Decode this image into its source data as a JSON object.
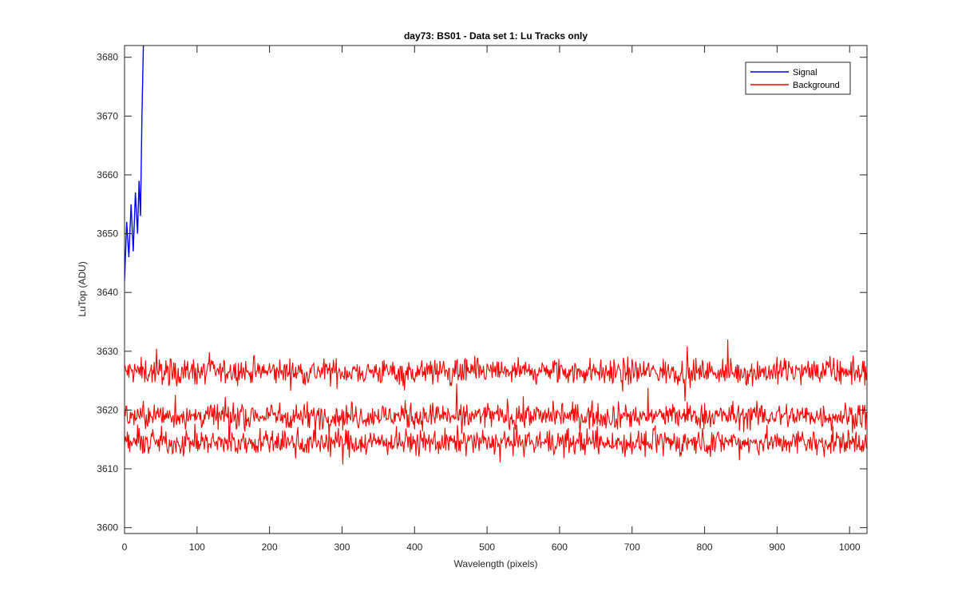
{
  "chart_data": {
    "type": "line",
    "title": "day73: BS01 - Data set 1: Lu Tracks only",
    "xlabel": "Wavelength (pixels)",
    "ylabel": "LuTop (ADU)",
    "xlim": [
      0,
      1024
    ],
    "ylim": [
      3599,
      3682
    ],
    "xticks": [
      0,
      100,
      200,
      300,
      400,
      500,
      600,
      700,
      800,
      900,
      1000
    ],
    "yticks": [
      3600,
      3610,
      3620,
      3630,
      3640,
      3650,
      3660,
      3670,
      3680
    ],
    "grid": false,
    "legend_position": "top-right",
    "series": [
      {
        "name": "Signal",
        "color": "#0000ff",
        "x": [
          0,
          3,
          6,
          9,
          12,
          15,
          18,
          20,
          22,
          24,
          26
        ],
        "y": [
          3642,
          3652,
          3646,
          3655,
          3647,
          3657,
          3650,
          3659,
          3653,
          3670,
          3682
        ]
      },
      {
        "name": "Background",
        "color": "#ff0000",
        "x_range": [
          0,
          1024
        ],
        "traces": [
          {
            "mean": 3626.5,
            "noise": 1.6
          },
          {
            "mean": 3619.0,
            "noise": 1.6
          },
          {
            "mean": 3614.5,
            "noise": 1.6
          }
        ]
      }
    ]
  }
}
